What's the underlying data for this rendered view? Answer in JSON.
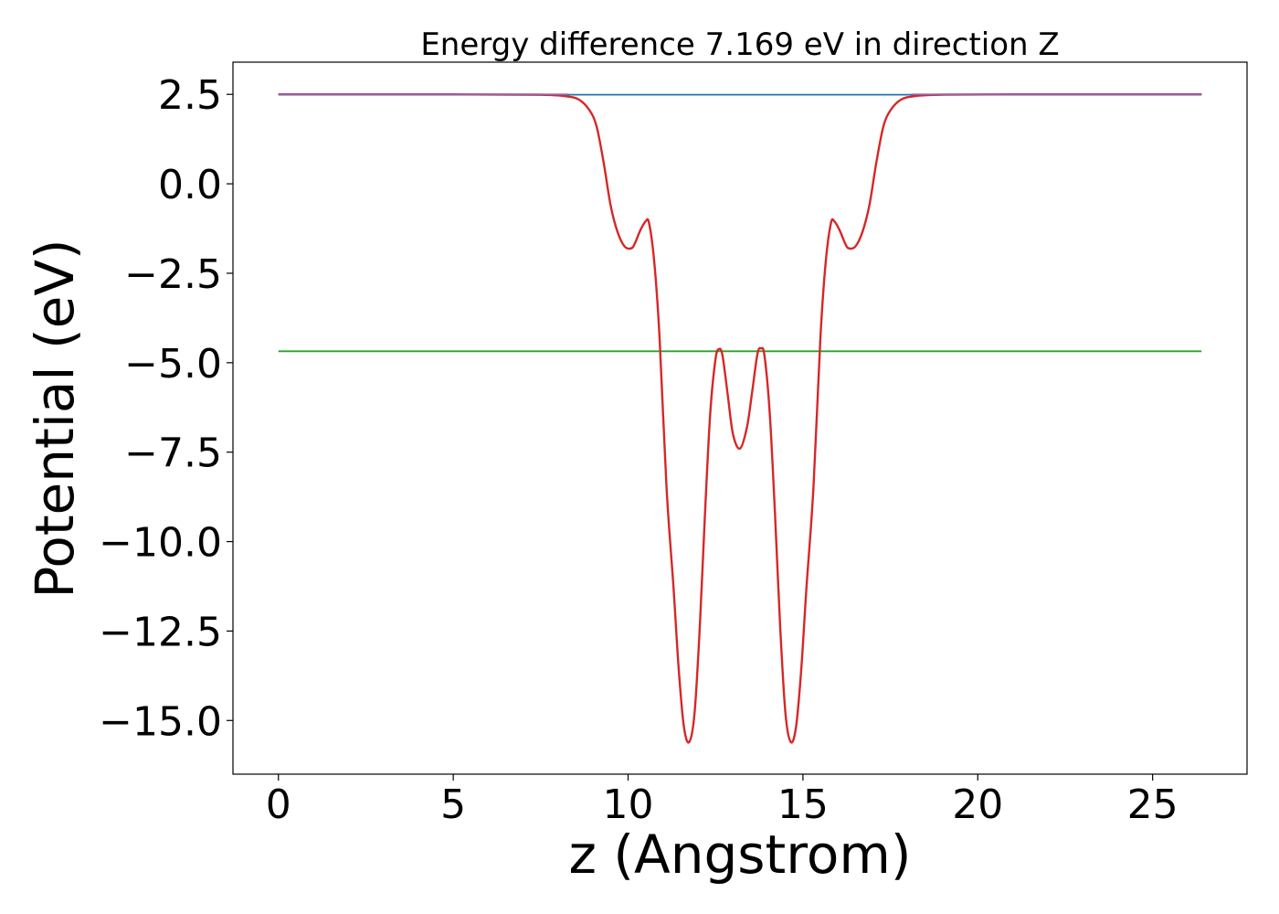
{
  "chart_data": {
    "type": "line",
    "title": "Energy difference 7.169 eV in direction Z",
    "xlabel": "z (Angstrom)",
    "ylabel": "Potential (eV)",
    "xlim": [
      -1.3,
      27.7
    ],
    "ylim": [
      -16.5,
      3.4
    ],
    "xticks": [
      0,
      5,
      10,
      15,
      20,
      25
    ],
    "xtick_labels": [
      "0",
      "5",
      "10",
      "15",
      "20",
      "25"
    ],
    "yticks": [
      2.5,
      0.0,
      -2.5,
      -5.0,
      -7.5,
      -10.0,
      -12.5,
      -15.0
    ],
    "ytick_labels": [
      "2.5",
      "0.0",
      "−2.5",
      "−5.0",
      "−7.5",
      "−10.0",
      "−12.5",
      "−15.0"
    ],
    "grid": false,
    "series": [
      {
        "kind": "hline",
        "color": "#1f77b4",
        "x": [
          0,
          26.4
        ],
        "y": [
          2.49,
          2.49
        ]
      },
      {
        "kind": "hline",
        "color": "#2ca02c",
        "x": [
          0,
          26.4
        ],
        "y": [
          -4.68,
          -4.68
        ]
      },
      {
        "kind": "curve",
        "color": "#d62728",
        "x": [
          0,
          5,
          7.5,
          8.2,
          8.6,
          8.9,
          9.1,
          9.3,
          9.5,
          9.7,
          9.9,
          10.1,
          10.2,
          10.35,
          10.5,
          10.6,
          10.75,
          10.9,
          11.1,
          11.3,
          11.45,
          11.6,
          11.75,
          11.9,
          12.05,
          12.2,
          12.35,
          12.5,
          12.6,
          12.7,
          12.85,
          13.0,
          13.2,
          13.4,
          13.55,
          13.7,
          13.8,
          13.9,
          14.05,
          14.2,
          14.35,
          14.5,
          14.65,
          14.8,
          14.95,
          15.1,
          15.3,
          15.5,
          15.65,
          15.8,
          15.9,
          16.05,
          16.2,
          16.3,
          16.5,
          16.7,
          16.9,
          17.1,
          17.3,
          17.5,
          17.8,
          18.2,
          18.9,
          21,
          26.4
        ],
        "y": [
          2.5,
          2.5,
          2.49,
          2.45,
          2.35,
          2.05,
          1.6,
          0.6,
          -0.6,
          -1.35,
          -1.75,
          -1.8,
          -1.65,
          -1.3,
          -1.05,
          -1.1,
          -2.2,
          -4.3,
          -8.5,
          -11.3,
          -13.6,
          -15.2,
          -15.6,
          -14.8,
          -12.4,
          -9.2,
          -6.4,
          -4.9,
          -4.62,
          -4.8,
          -5.9,
          -7.0,
          -7.4,
          -6.8,
          -5.8,
          -4.75,
          -4.6,
          -4.8,
          -6.4,
          -9.2,
          -12.4,
          -14.8,
          -15.6,
          -15.2,
          -13.6,
          -11.3,
          -8.5,
          -4.3,
          -2.2,
          -1.1,
          -1.05,
          -1.3,
          -1.65,
          -1.8,
          -1.75,
          -1.35,
          -0.6,
          0.6,
          1.6,
          2.05,
          2.35,
          2.45,
          2.49,
          2.5,
          2.5
        ]
      },
      {
        "kind": "overlay",
        "color": "#8a64b8",
        "x": [
          0,
          8.3
        ],
        "y": [
          2.5,
          2.5
        ]
      },
      {
        "kind": "overlay",
        "color": "#8a64b8",
        "x": [
          18.1,
          26.4
        ],
        "y": [
          2.5,
          2.5
        ]
      }
    ]
  }
}
